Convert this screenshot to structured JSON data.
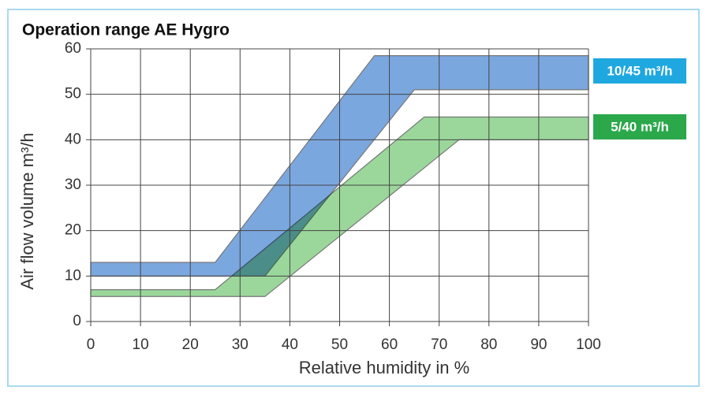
{
  "chart_data": {
    "type": "band",
    "title": "Operation range AE Hygro",
    "x_label": "Relative humidity in %",
    "y_label": "Air flow volume m³/h",
    "xlim": [
      0,
      100
    ],
    "ylim": [
      0,
      60
    ],
    "xticks": [
      0,
      10,
      20,
      30,
      40,
      50,
      60,
      70,
      80,
      90,
      100
    ],
    "yticks": [
      0,
      10,
      20,
      30,
      40,
      50,
      60
    ],
    "grid": true,
    "legend_position": "right",
    "series": [
      {
        "name": "10/45 m³/h",
        "color": "#7ba7df",
        "legend_color": "#1fa8e0",
        "upper_x": [
          0,
          25,
          57,
          100
        ],
        "upper": [
          13,
          13,
          58.5,
          58.5
        ],
        "lower_x": [
          0,
          35,
          65,
          100
        ],
        "lower": [
          10,
          10,
          51,
          51
        ]
      },
      {
        "name": "5/40 m³/h",
        "color": "#9bd79b",
        "legend_color": "#2aa84a",
        "upper_x": [
          0,
          25,
          67,
          100
        ],
        "upper": [
          7,
          7,
          45,
          45
        ],
        "lower_x": [
          0,
          35,
          74,
          100
        ],
        "lower": [
          5.5,
          5.5,
          40,
          40
        ]
      }
    ]
  }
}
